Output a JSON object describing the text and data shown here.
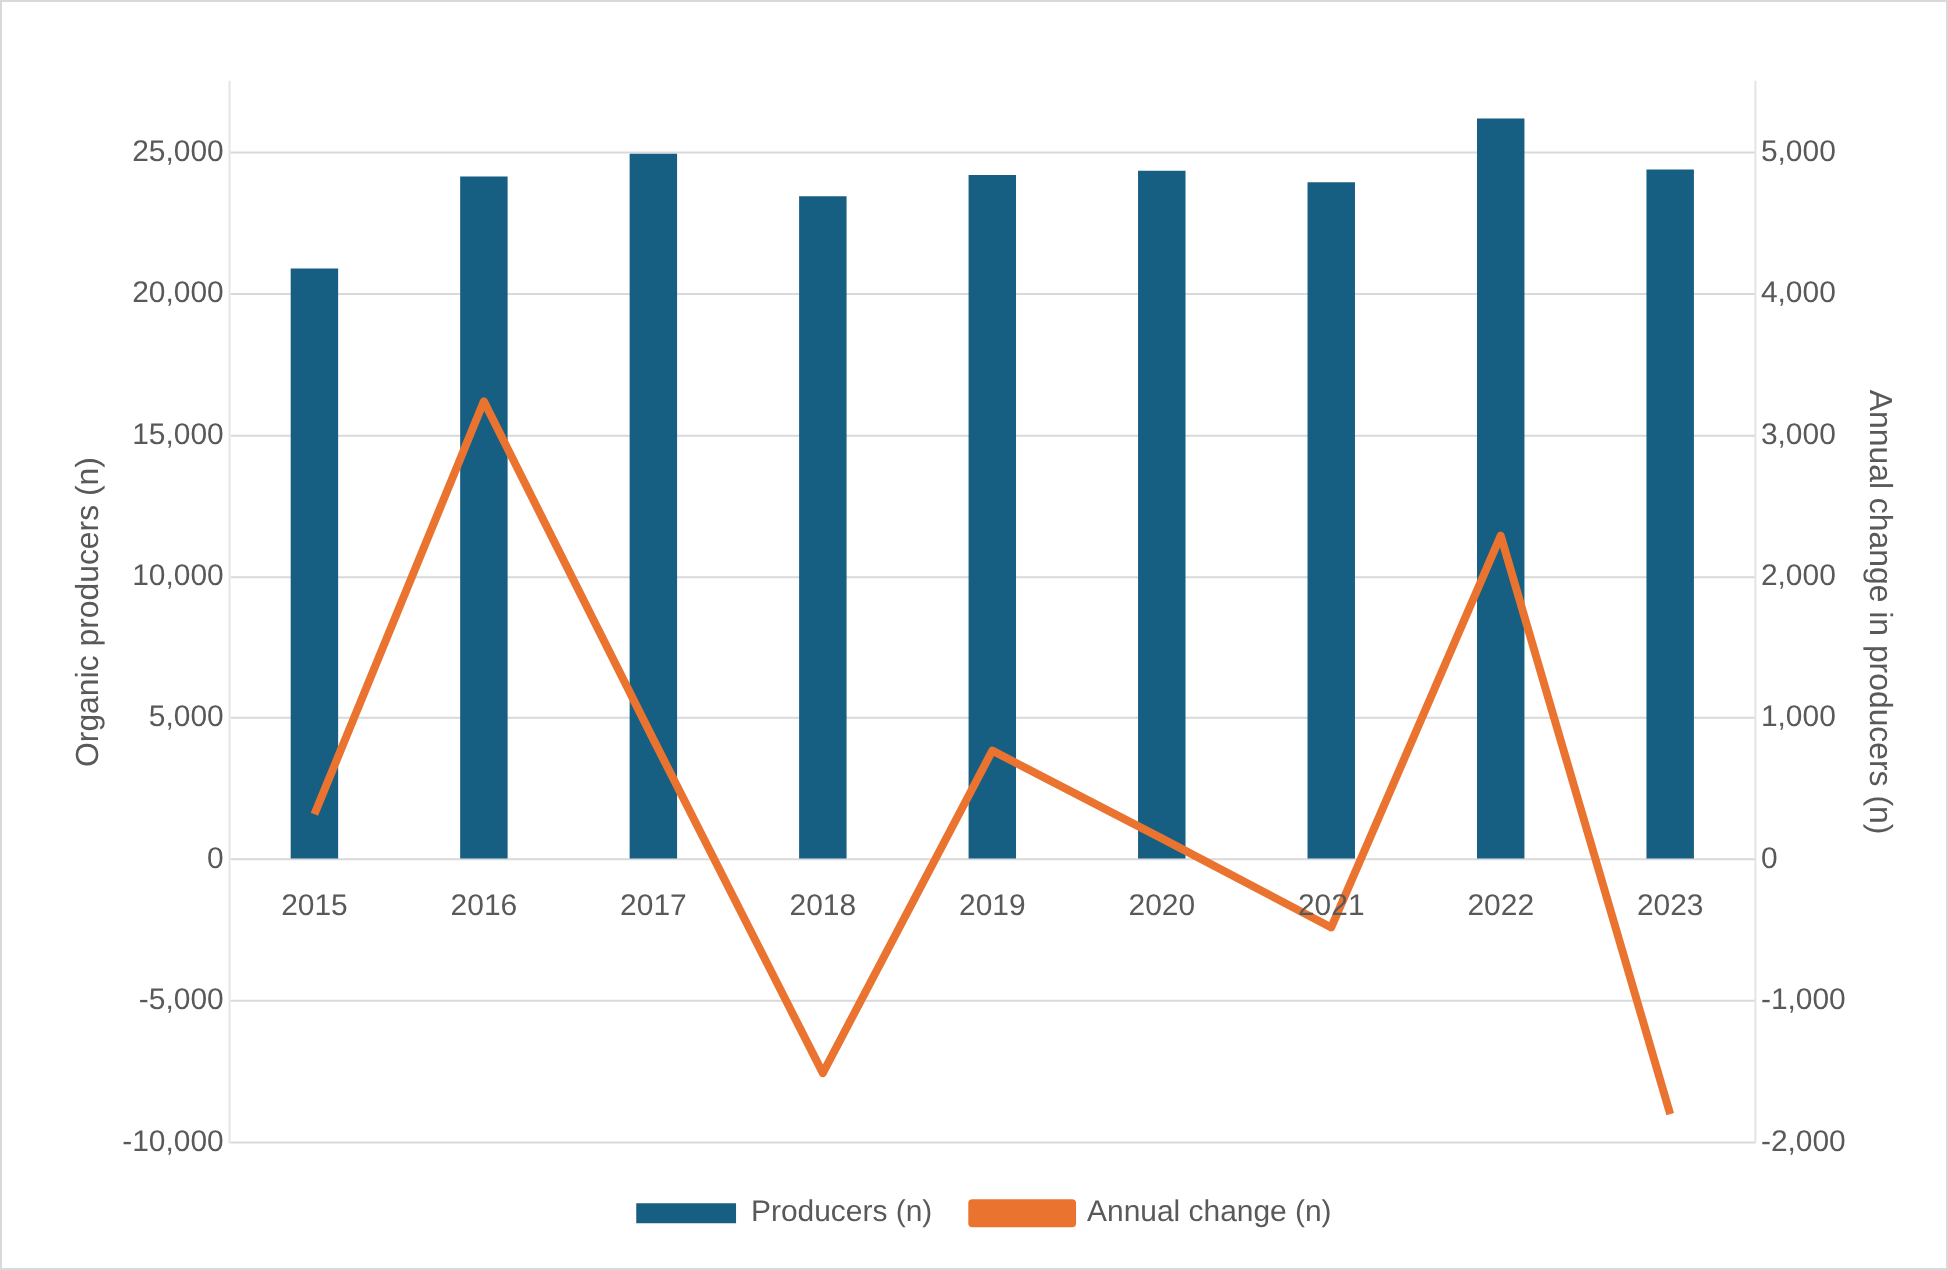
{
  "chart_data": {
    "type": "bar",
    "categories": [
      "2015",
      "2016",
      "2017",
      "2018",
      "2019",
      "2020",
      "2021",
      "2022",
      "2023"
    ],
    "series": [
      {
        "name": "Producers (n)",
        "color": "#175e83",
        "values": [
          20900,
          24150,
          24950,
          23450,
          24200,
          24350,
          23950,
          26200,
          24400
        ]
      },
      {
        "name": "Annual change (n)",
        "color": "#eb7330",
        "type": "line",
        "axis": "y2",
        "values": [
          320,
          3240,
          850,
          -1510,
          770,
          150,
          -480,
          2290,
          -1800
        ]
      }
    ],
    "ylabel": "Organic producers (n)",
    "y2label": "Annual change in producers (n)",
    "ylim": [
      -10000,
      27500
    ],
    "yticks": [
      {
        "value": -10000,
        "label": "-10,000"
      },
      {
        "value": -5000,
        "label": "-5,000"
      },
      0,
      {
        "value": 5000,
        "label": "5,000"
      },
      {
        "value": 10000,
        "label": "10,000"
      },
      {
        "value": 15000,
        "label": "15,000"
      },
      {
        "value": 20000,
        "label": "20,000"
      },
      {
        "value": 25000,
        "label": "25,000"
      }
    ],
    "y2lim": [
      -2000,
      5500
    ],
    "y2ticks": [
      {
        "value": -2000,
        "label": "-2,000"
      },
      {
        "value": -1000,
        "label": "-1,000"
      },
      0,
      {
        "value": 1000,
        "label": "1,000"
      },
      {
        "value": 2000,
        "label": "2,000"
      },
      {
        "value": 3000,
        "label": "3,000"
      },
      {
        "value": 4000,
        "label": "4,000"
      },
      {
        "value": 5000,
        "label": "5,000"
      }
    ],
    "grid": "y",
    "legend": "bottom",
    "marker": "none"
  }
}
